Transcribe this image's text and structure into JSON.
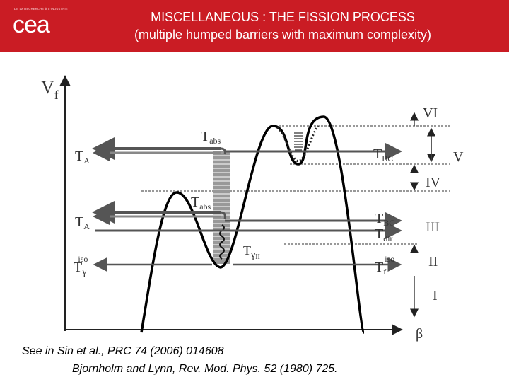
{
  "header": {
    "logo_small_text": "DE LA RECHERCHE À L'INDUSTRIE",
    "logo_text": "cea",
    "title_line1": "MISCELLANEOUS : THE FISSION PROCESS",
    "title_line2": "(multiple humped barriers with maximum complexity)"
  },
  "diagram": {
    "y_axis_label": "V",
    "y_axis_sub": "f",
    "x_axis_label": "β",
    "T_A_top": {
      "main": "T",
      "sub": "A"
    },
    "T_abs_top": {
      "main": "T",
      "sub": "abs"
    },
    "T_BC_top": {
      "main": "T",
      "sub": "BC"
    },
    "T_A_mid": {
      "main": "T",
      "sub": "A"
    },
    "T_abs_mid": {
      "main": "T",
      "sub": "abs"
    },
    "T_BC_mid": {
      "main": "T",
      "sub": "BC"
    },
    "T_dir": {
      "main": "T",
      "sub": "dir"
    },
    "T_gamma_iso": {
      "main": "T",
      "greek": "γ",
      "sup": "iso"
    },
    "T_gamma_II": {
      "main": "T",
      "greek": "γ",
      "sub": "II"
    },
    "T_f_iso": {
      "main": "T",
      "sub": "f",
      "sup": "iso"
    },
    "regions": [
      "VI",
      "V",
      "IV",
      "III",
      "II",
      "I"
    ],
    "colors": {
      "arrow": "#555555",
      "wide_arrow": "#888888",
      "barrier": "#000000",
      "band": "#999999"
    }
  },
  "references": {
    "line1": "See in  Sin et al., PRC 74 (2006) 014608",
    "line2": "Bjornholm and Lynn, Rev. Mod. Phys. 52 (1980) 725."
  }
}
